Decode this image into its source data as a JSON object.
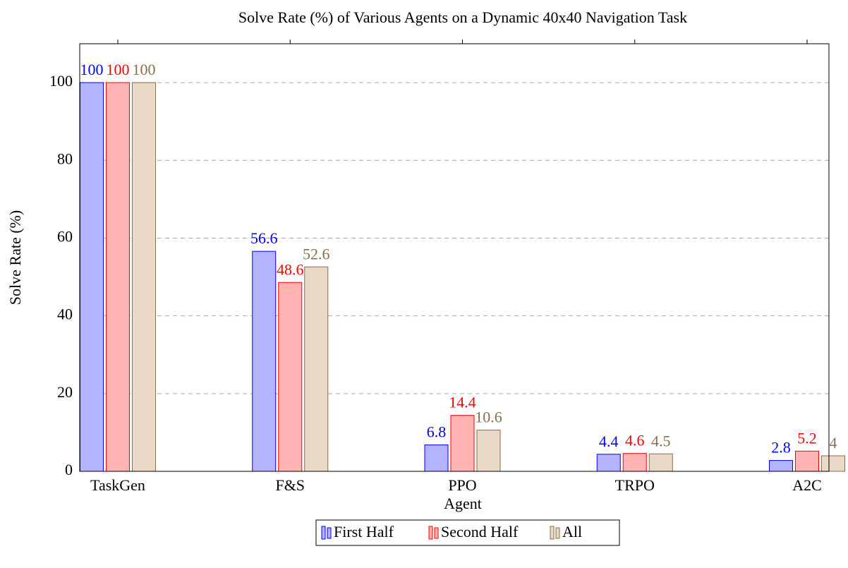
{
  "chart_data": {
    "type": "bar",
    "title": "Solve Rate (%) of Various Agents on a Dynamic 40x40 Navigation Task",
    "x_label": "Agent",
    "y_label": "Solve Rate (%)",
    "categories": [
      "TaskGen",
      "F&S",
      "PPO",
      "TRPO",
      "A2C"
    ],
    "series": [
      {
        "name": "First Half",
        "color": "#b3b3ff",
        "edge": "#0000ff",
        "values": [
          100,
          56.6,
          6.8,
          4.4,
          2.8
        ]
      },
      {
        "name": "Second Half",
        "color": "#ffb3b3",
        "edge": "#ff0000",
        "values": [
          100,
          48.6,
          14.4,
          4.6,
          5.2
        ]
      },
      {
        "name": "All",
        "color": "#ead9c6",
        "edge": "#8b6c4c",
        "values": [
          100,
          52.6,
          10.6,
          4.5,
          4
        ]
      }
    ],
    "ylim": [
      0,
      110
    ],
    "yticks": [
      0,
      20,
      40,
      60,
      80,
      100
    ],
    "grid": true,
    "legend": "bottom"
  }
}
